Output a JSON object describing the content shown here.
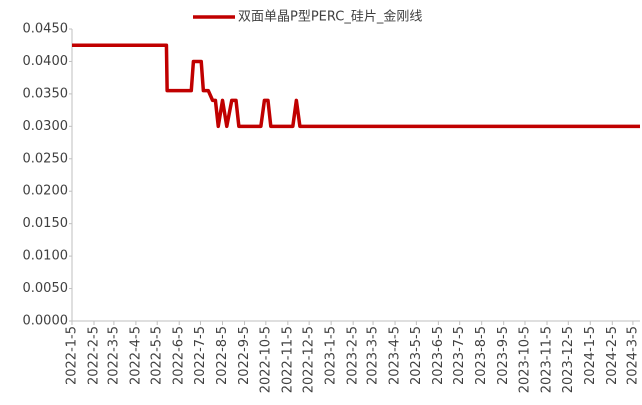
{
  "chart_data": {
    "type": "line",
    "series": [
      {
        "name": "双面单晶P型PERC_硅片_金刚线",
        "color": "#c00000",
        "x": [
          "2022-1-5",
          "2022-5-18",
          "2022-5-19",
          "2022-6-22",
          "2022-6-25",
          "2022-7-6",
          "2022-7-9",
          "2022-7-16",
          "2022-7-22",
          "2022-7-26",
          "2022-7-30",
          "2022-8-5",
          "2022-8-11",
          "2022-8-18",
          "2022-8-24",
          "2022-8-28",
          "2022-9-28",
          "2022-10-3",
          "2022-10-8",
          "2022-10-12",
          "2022-11-12",
          "2022-11-17",
          "2022-11-22",
          "2024-3-15"
        ],
        "values": [
          0.0425,
          0.0425,
          0.0355,
          0.0355,
          0.04,
          0.04,
          0.0355,
          0.0355,
          0.034,
          0.034,
          0.03,
          0.034,
          0.03,
          0.034,
          0.034,
          0.03,
          0.03,
          0.034,
          0.034,
          0.03,
          0.03,
          0.034,
          0.03,
          0.03
        ]
      }
    ],
    "xlim": [
      "2022-1-5",
      "2024-3-15"
    ],
    "xticks": [
      "2022-1-5",
      "2022-2-5",
      "2022-3-5",
      "2022-4-5",
      "2022-5-5",
      "2022-6-5",
      "2022-7-5",
      "2022-8-5",
      "2022-9-5",
      "2022-10-5",
      "2022-11-5",
      "2022-12-5",
      "2023-1-5",
      "2023-2-5",
      "2023-3-5",
      "2023-4-5",
      "2023-5-5",
      "2023-6-5",
      "2023-7-5",
      "2023-8-5",
      "2023-9-5",
      "2023-10-5",
      "2023-11-5",
      "2023-12-5",
      "2024-1-5",
      "2024-2-5",
      "2024-3-5"
    ],
    "ylim": [
      0,
      0.045
    ],
    "yticks": [
      {
        "value": 0,
        "label": "0.0000"
      },
      {
        "value": 0.005,
        "label": "0.0050"
      },
      {
        "value": 0.01,
        "label": "0.0100"
      },
      {
        "value": 0.015,
        "label": "0.0150"
      },
      {
        "value": 0.02,
        "label": "0.0200"
      },
      {
        "value": 0.025,
        "label": "0.0250"
      },
      {
        "value": 0.03,
        "label": "0.0300"
      },
      {
        "value": 0.035,
        "label": "0.0350"
      },
      {
        "value": 0.04,
        "label": "0.0400"
      },
      {
        "value": 0.045,
        "label": "0.0450"
      }
    ],
    "legend": "top"
  }
}
